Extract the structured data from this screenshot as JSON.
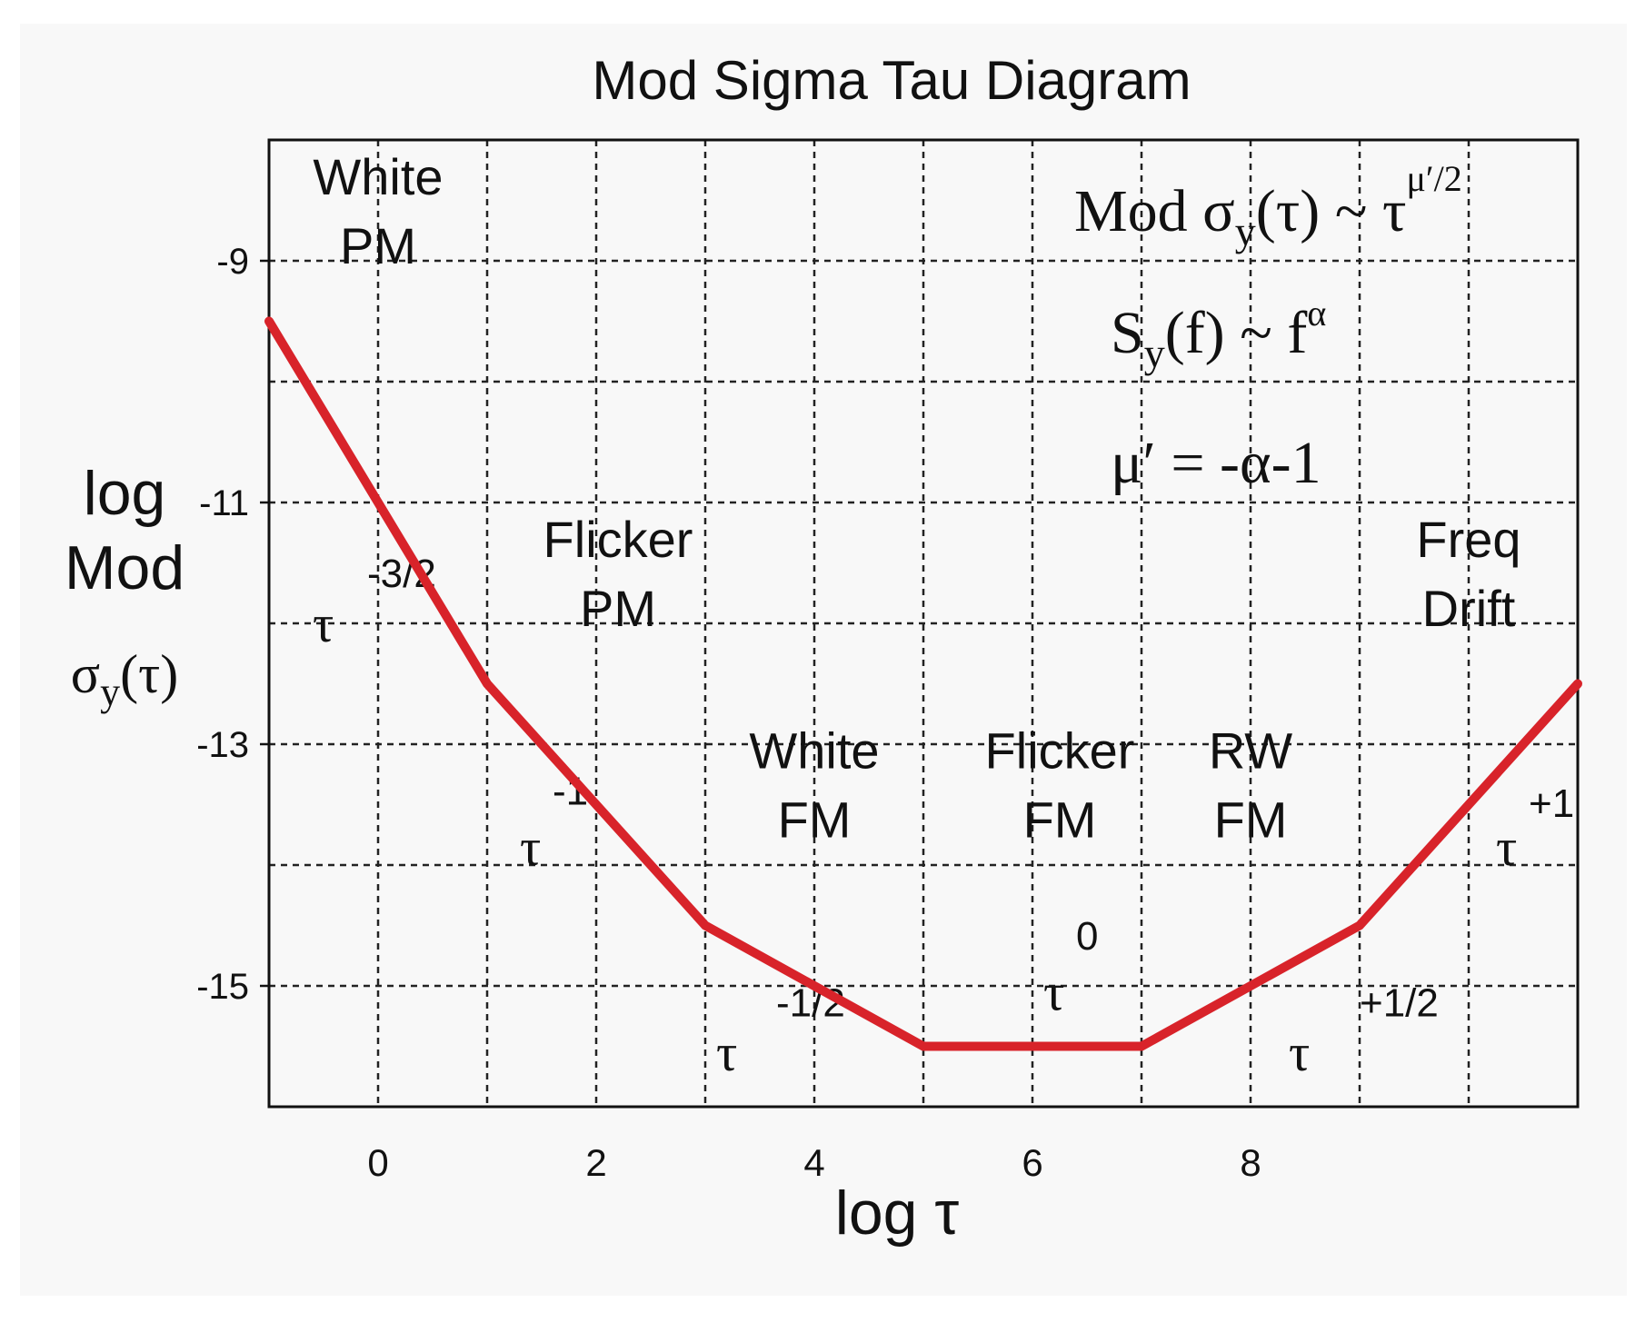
{
  "colors": {
    "curve": "#d8232a",
    "grid": "#222222",
    "frame": "#111111",
    "background": "#f8f8f8"
  },
  "chart_data": {
    "type": "line",
    "title": "Mod Sigma Tau Diagram",
    "xlabel": "log τ",
    "ylabel": [
      "log",
      "Mod",
      "σy(τ)"
    ],
    "xlim": [
      -1,
      11
    ],
    "ylim": [
      -16,
      -8
    ],
    "x_ticks": [
      0,
      2,
      4,
      6,
      8
    ],
    "x_tick_labels": [
      "0",
      "2",
      "4",
      "6",
      "8"
    ],
    "y_ticks": [
      -9,
      -11,
      -13,
      -15
    ],
    "y_tick_labels": [
      "-9",
      "-11",
      "-13",
      "-15"
    ],
    "grid": true,
    "x_gridlines": [
      0,
      1,
      2,
      3,
      4,
      5,
      6,
      7,
      8,
      9,
      10
    ],
    "y_gridlines": [
      -9,
      -10,
      -11,
      -12,
      -13,
      -14,
      -15
    ],
    "series": [
      {
        "x": [
          -1,
          1,
          3,
          5,
          7,
          9,
          11
        ],
        "y": [
          -9.5,
          -12.5,
          -14.5,
          -15.5,
          -15.5,
          -14.5,
          -12.5
        ]
      }
    ],
    "region_labels": [
      {
        "lines": [
          "White",
          "PM"
        ],
        "x": 0,
        "y": -8.45
      },
      {
        "lines": [
          "Flicker",
          "PM"
        ],
        "x": 2.2,
        "y": -11.45
      },
      {
        "lines": [
          "White",
          "FM"
        ],
        "x": 4.0,
        "y": -13.2
      },
      {
        "lines": [
          "Flicker",
          "FM"
        ],
        "x": 6.25,
        "y": -13.2
      },
      {
        "lines": [
          "RW",
          "FM"
        ],
        "x": 8.0,
        "y": -13.2
      },
      {
        "lines": [
          "Freq",
          "Drift"
        ],
        "x": 10.0,
        "y": -11.45
      }
    ],
    "slope_labels": [
      {
        "base": "τ",
        "exponent": "-3/2",
        "x": -0.6,
        "y": -12.15,
        "ex": -0.1,
        "ey": -11.7
      },
      {
        "base": "τ",
        "exponent": "-1",
        "x": 1.3,
        "y": -14.0,
        "ex": 1.6,
        "ey": -13.5
      },
      {
        "base": "τ",
        "exponent": "-1/2",
        "x": 3.1,
        "y": -15.7,
        "ex": 3.65,
        "ey": -15.25
      },
      {
        "base": "τ",
        "exponent": "0",
        "x": 6.1,
        "y": -15.2,
        "ex": 6.4,
        "ey": -14.7
      },
      {
        "base": "τ",
        "exponent": "+1/2",
        "x": 8.35,
        "y": -15.7,
        "ex": 9.0,
        "ey": -15.25
      },
      {
        "base": "τ",
        "exponent": "+1",
        "x": 10.25,
        "y": -14.0,
        "ex": 10.55,
        "ey": -13.6
      }
    ],
    "annotations": {
      "formula1": {
        "prefix": "Mod σ",
        "sub": "y",
        "mid": "(τ) ~ τ",
        "sup": "μ′/2"
      },
      "formula2": {
        "prefix": "S",
        "sub": "y",
        "mid": "(f) ~ f",
        "sup": "α"
      },
      "formula3": {
        "text": "μ′ = -α-1"
      }
    }
  }
}
